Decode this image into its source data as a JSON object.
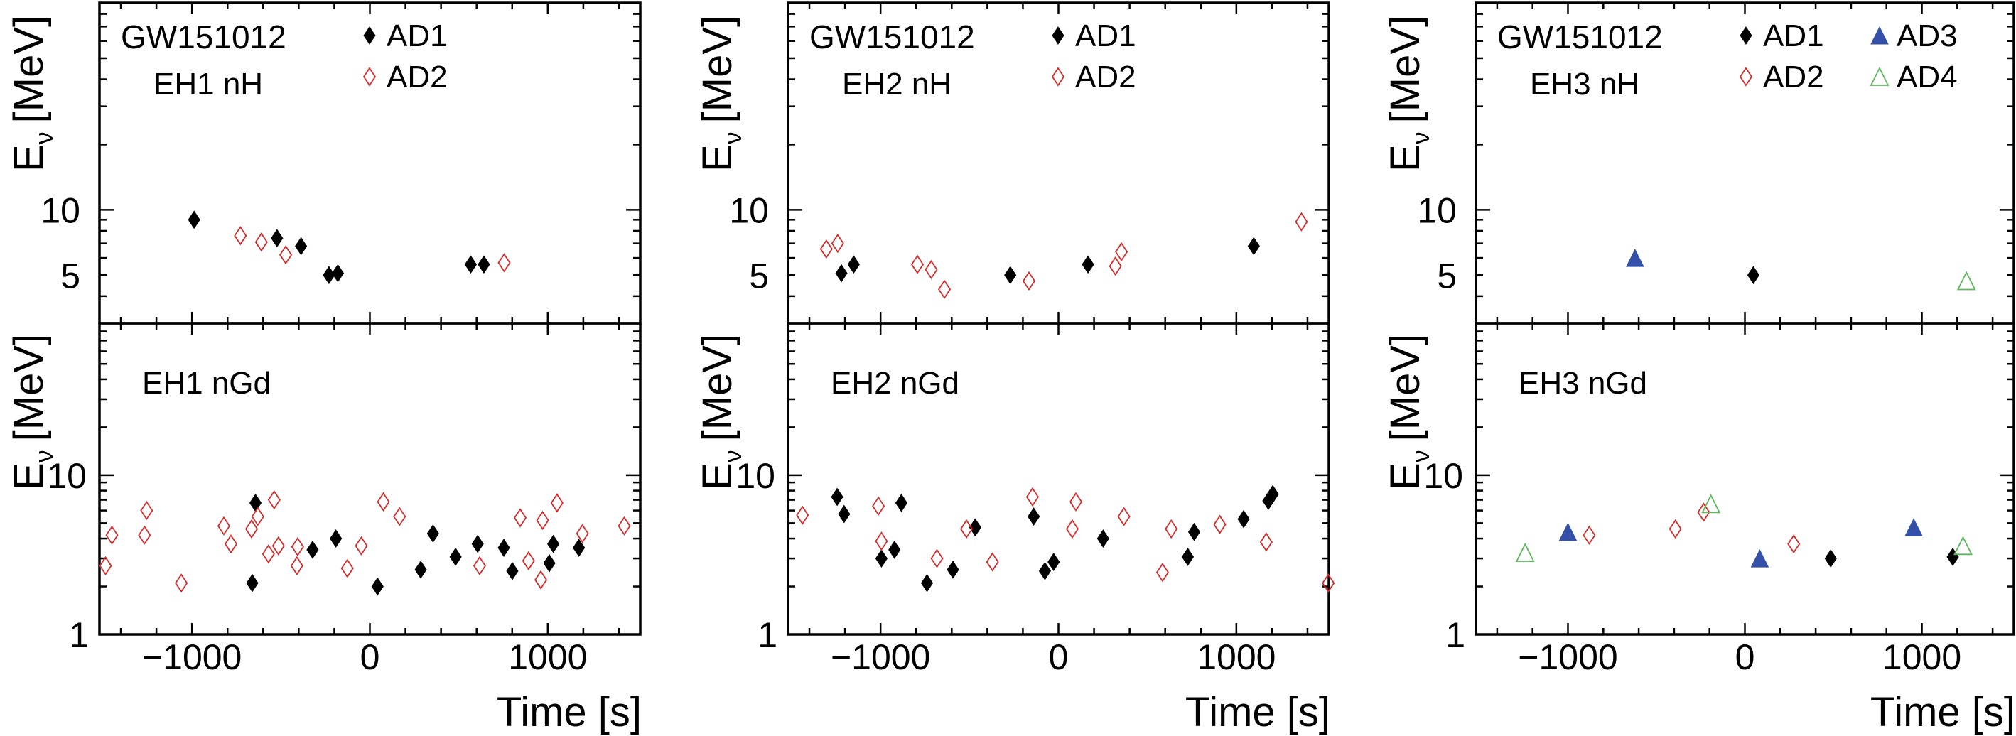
{
  "colors": {
    "AD1": "#000000",
    "AD2": "#d62b2b",
    "AD3": "#3450a8",
    "AD4": "#5cb85c",
    "title": "#3a55aa"
  },
  "chart_data": [
    {
      "type": "scatter",
      "title": "GW151012",
      "label": "EH1 nH",
      "ylabel_main": "E",
      "ylabel_sub": "ν",
      "ylabel_unit": "[MeV]",
      "xlabel": "Time [s]",
      "xlim": [
        -1520,
        1520
      ],
      "ylim": [
        3,
        90
      ],
      "yscale": "log",
      "yticks": [
        {
          "v": 10,
          "label": "10"
        },
        {
          "v": 5,
          "label": "5"
        }
      ],
      "xticks": [
        {
          "v": -1000,
          "label": "−1000"
        },
        {
          "v": 0,
          "label": "0"
        },
        {
          "v": 1000,
          "label": "1000"
        }
      ],
      "legend": [
        {
          "name": "AD1",
          "symbol": "diamond-filled"
        },
        {
          "name": "AD2",
          "symbol": "diamond-open"
        }
      ],
      "series": [
        {
          "name": "AD1",
          "symbol": "diamond-filled",
          "x": [
            -988,
            -522,
            -387,
            -230,
            -180,
            567,
            641
          ],
          "y": [
            9.0,
            7.4,
            6.8,
            5.0,
            5.1,
            5.6,
            5.6
          ]
        },
        {
          "name": "AD2",
          "symbol": "diamond-open",
          "x": [
            -728,
            -610,
            -473,
            755
          ],
          "y": [
            7.6,
            7.1,
            6.2,
            5.7
          ]
        }
      ]
    },
    {
      "type": "scatter",
      "label": "EH1 nGd",
      "ylabel_main": "E",
      "ylabel_sub": "ν",
      "ylabel_unit": "[MeV]",
      "xlabel": "Time [s]",
      "xlim": [
        -1520,
        1520
      ],
      "ylim": [
        1,
        90
      ],
      "yscale": "log",
      "yticks": [
        {
          "v": 10,
          "label": "10"
        },
        {
          "v": 1,
          "label": "1"
        }
      ],
      "xticks": [
        {
          "v": -1000,
          "label": "−1000"
        },
        {
          "v": 0,
          "label": "0"
        },
        {
          "v": 1000,
          "label": "1000"
        }
      ],
      "series": [
        {
          "name": "AD1",
          "symbol": "diamond-filled",
          "x": [
            -643,
            -661,
            -322,
            -191,
            43,
            286,
            355,
            482,
            606,
            753,
            801,
            1009,
            1031,
            1175
          ],
          "y": [
            6.7,
            2.1,
            3.4,
            4.0,
            2.0,
            2.55,
            4.3,
            3.07,
            3.7,
            3.5,
            2.5,
            2.8,
            3.7,
            3.5
          ]
        },
        {
          "name": "AD2",
          "symbol": "diamond-open",
          "x": [
            -1486,
            -1450,
            -1255,
            -1267,
            -1060,
            -821,
            -781,
            -665,
            -630,
            -570,
            -538,
            -514,
            -406,
            -410,
            -127,
            -48,
            76,
            167,
            617,
            845,
            892,
            961,
            971,
            1052,
            1195,
            1430
          ],
          "y": [
            2.7,
            4.2,
            6.0,
            4.2,
            2.1,
            4.8,
            3.7,
            4.6,
            5.5,
            3.2,
            7.0,
            3.6,
            3.55,
            2.7,
            2.6,
            3.6,
            6.8,
            5.5,
            2.7,
            5.4,
            2.9,
            2.2,
            5.2,
            6.7,
            4.3,
            4.8
          ]
        }
      ]
    },
    {
      "type": "scatter",
      "title": "GW151012",
      "label": "EH2 nH",
      "ylabel_main": "E",
      "ylabel_sub": "ν",
      "ylabel_unit": "[MeV]",
      "xlabel": "Time [s]",
      "xlim": [
        -1520,
        1520
      ],
      "ylim": [
        3,
        90
      ],
      "yscale": "log",
      "yticks": [
        {
          "v": 10,
          "label": "10"
        },
        {
          "v": 5,
          "label": "5"
        }
      ],
      "xticks": [
        {
          "v": -1000,
          "label": "−1000"
        },
        {
          "v": 0,
          "label": "0"
        },
        {
          "v": 1000,
          "label": "1000"
        }
      ],
      "legend": [
        {
          "name": "AD1",
          "symbol": "diamond-filled"
        },
        {
          "name": "AD2",
          "symbol": "diamond-open"
        }
      ],
      "series": [
        {
          "name": "AD1",
          "symbol": "diamond-filled",
          "x": [
            -1220,
            -1151,
            -271,
            166,
            1098
          ],
          "y": [
            5.1,
            5.6,
            5.0,
            5.6,
            6.8
          ]
        },
        {
          "name": "AD2",
          "symbol": "diamond-open",
          "x": [
            -1305,
            -1241,
            -793,
            -715,
            -641,
            -166,
            320,
            354,
            1366
          ],
          "y": [
            6.6,
            7.0,
            5.6,
            5.3,
            4.3,
            4.7,
            5.5,
            6.4,
            8.8
          ]
        }
      ]
    },
    {
      "type": "scatter",
      "label": "EH2 nGd",
      "ylabel_main": "E",
      "ylabel_sub": "ν",
      "ylabel_unit": "[MeV]",
      "xlabel": "Time [s]",
      "xlim": [
        -1520,
        1520
      ],
      "ylim": [
        1,
        90
      ],
      "yscale": "log",
      "yticks": [
        {
          "v": 10,
          "label": "10"
        },
        {
          "v": 1,
          "label": "1"
        }
      ],
      "xticks": [
        {
          "v": -1000,
          "label": "−1000"
        },
        {
          "v": 0,
          "label": "0"
        },
        {
          "v": 1000,
          "label": "1000"
        }
      ],
      "series": [
        {
          "name": "AD1",
          "symbol": "diamond-filled",
          "x": [
            -1244,
            -1205,
            -995,
            -922,
            -883,
            -739,
            -593,
            -468,
            -139,
            -76,
            -27,
            251,
            727,
            763,
            1041,
            1180,
            1205
          ],
          "y": [
            7.3,
            5.7,
            3.0,
            3.4,
            6.7,
            2.1,
            2.55,
            4.7,
            5.5,
            2.5,
            2.85,
            4.0,
            3.07,
            4.4,
            5.3,
            6.9,
            7.6
          ]
        },
        {
          "name": "AD2",
          "symbol": "diamond-open",
          "x": [
            -1439,
            -1012,
            -995,
            -683,
            -517,
            -371,
            -146,
            78,
            98,
            368,
            585,
            634,
            907,
            1168,
            1517
          ],
          "y": [
            5.6,
            6.4,
            3.85,
            3.0,
            4.6,
            2.85,
            7.3,
            4.6,
            6.8,
            5.5,
            2.45,
            4.6,
            4.9,
            3.8,
            2.1
          ]
        }
      ]
    },
    {
      "type": "scatter",
      "title": "GW151012",
      "label": "EH3 nH",
      "ylabel_main": "E",
      "ylabel_sub": "ν",
      "ylabel_unit": "[MeV]",
      "xlabel": "Time [s]",
      "xlim": [
        -1520,
        1520
      ],
      "ylim": [
        3,
        90
      ],
      "yscale": "log",
      "yticks": [
        {
          "v": 10,
          "label": "10"
        },
        {
          "v": 5,
          "label": "5"
        }
      ],
      "xticks": [
        {
          "v": -1000,
          "label": "−1000"
        },
        {
          "v": 0,
          "label": "0"
        },
        {
          "v": 1000,
          "label": "1000"
        }
      ],
      "legend": [
        {
          "name": "AD1",
          "symbol": "diamond-filled"
        },
        {
          "name": "AD2",
          "symbol": "diamond-open"
        },
        {
          "name": "AD3",
          "symbol": "triangle-filled"
        },
        {
          "name": "AD4",
          "symbol": "triangle-open"
        }
      ],
      "series": [
        {
          "name": "AD1",
          "symbol": "diamond-filled",
          "x": [
            48
          ],
          "y": [
            5.0
          ]
        },
        {
          "name": "AD3",
          "symbol": "triangle-filled",
          "x": [
            -621
          ],
          "y": [
            6.0
          ]
        },
        {
          "name": "AD4",
          "symbol": "triangle-open",
          "x": [
            1252
          ],
          "y": [
            4.7
          ]
        }
      ]
    },
    {
      "type": "scatter",
      "label": "EH3 nGd",
      "ylabel_main": "E",
      "ylabel_sub": "ν",
      "ylabel_unit": "[MeV]",
      "xlabel": "Time [s]",
      "xlim": [
        -1520,
        1520
      ],
      "ylim": [
        1,
        90
      ],
      "yscale": "log",
      "yticks": [
        {
          "v": 10,
          "label": "10"
        },
        {
          "v": 1,
          "label": "1"
        }
      ],
      "xticks": [
        {
          "v": -1000,
          "label": "−1000"
        },
        {
          "v": 0,
          "label": "0"
        },
        {
          "v": 1000,
          "label": "1000"
        }
      ],
      "series": [
        {
          "name": "AD1",
          "symbol": "diamond-filled",
          "x": [
            485,
            1175
          ],
          "y": [
            3.0,
            3.07
          ]
        },
        {
          "name": "AD2",
          "symbol": "diamond-open",
          "x": [
            -880,
            -393,
            -233,
            276
          ],
          "y": [
            4.2,
            4.6,
            5.85,
            3.7
          ]
        },
        {
          "name": "AD3",
          "symbol": "triangle-filled",
          "x": [
            -1000,
            84,
            954
          ],
          "y": [
            4.4,
            3.0,
            4.7
          ]
        },
        {
          "name": "AD4",
          "symbol": "triangle-open",
          "x": [
            -1242,
            -192,
            1233
          ],
          "y": [
            3.26,
            6.6,
            3.6
          ]
        }
      ]
    }
  ]
}
